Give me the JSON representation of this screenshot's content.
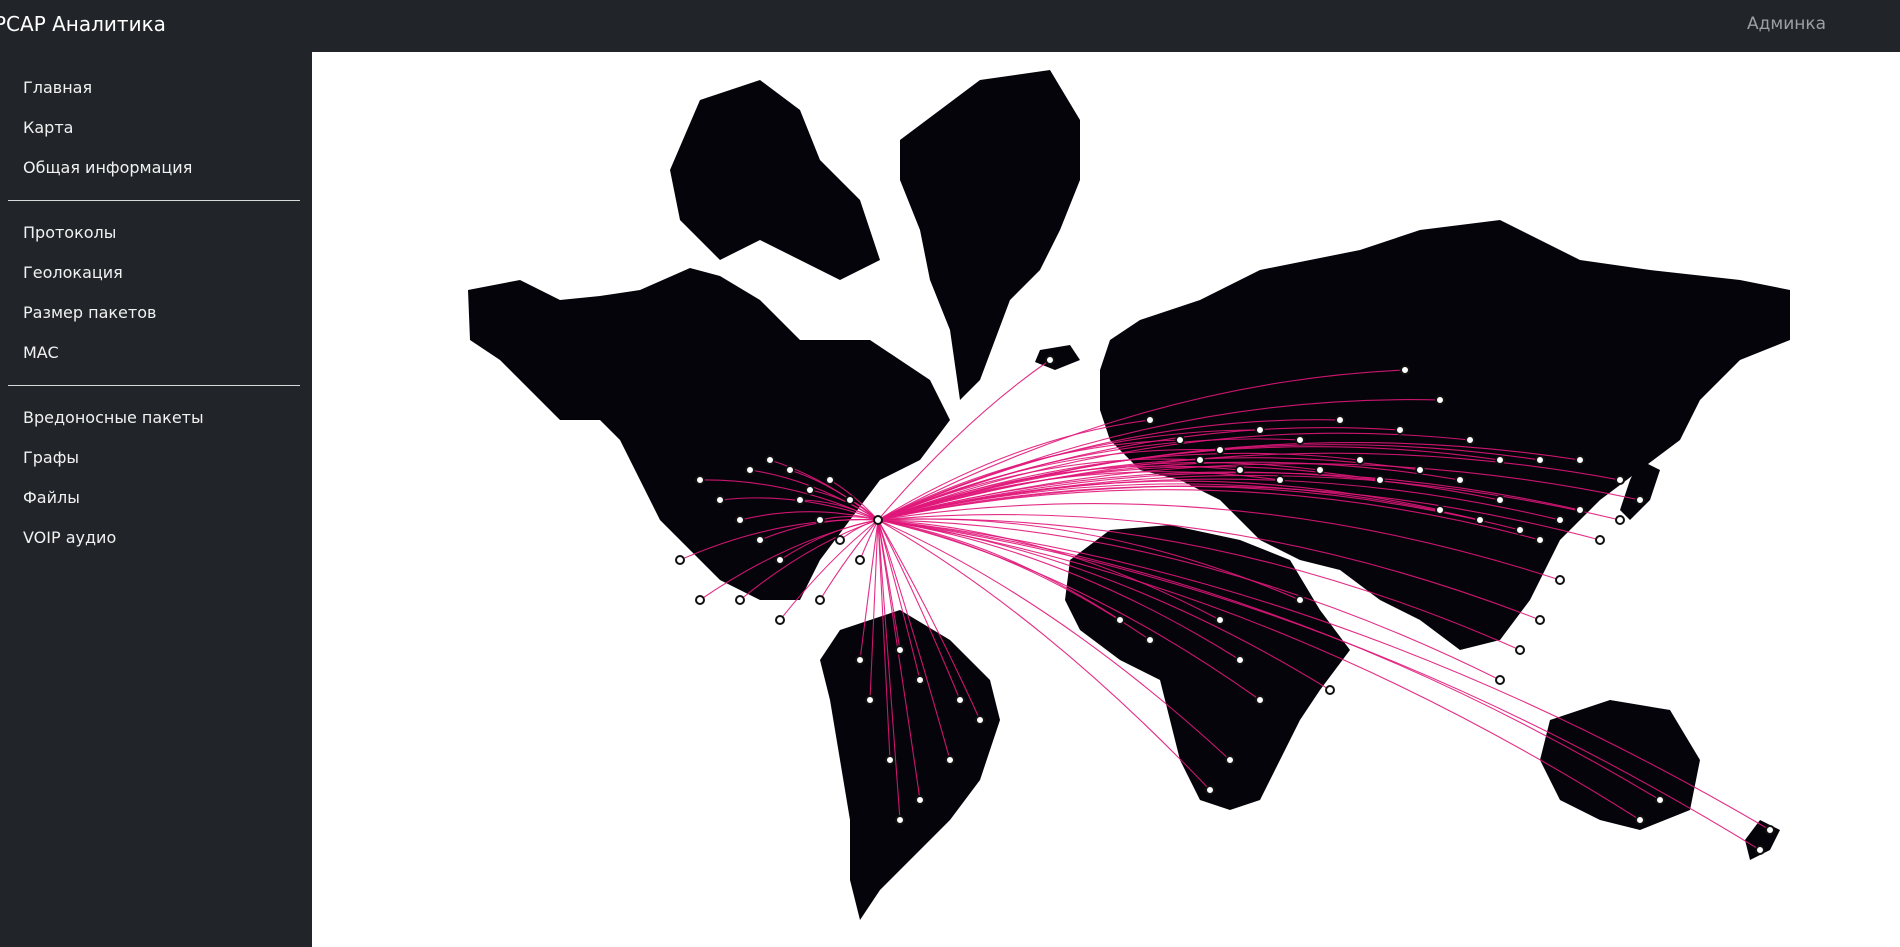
{
  "header": {
    "brand": "PCAP Аналитика",
    "admin_link": "Админка"
  },
  "sidebar": {
    "groups": [
      {
        "items": [
          {
            "label": "Главная"
          },
          {
            "label": "Карта"
          },
          {
            "label": "Общая информация"
          }
        ]
      },
      {
        "items": [
          {
            "label": "Протоколы"
          },
          {
            "label": "Геолокация"
          },
          {
            "label": "Размер пакетов"
          },
          {
            "label": "MAC"
          }
        ]
      },
      {
        "items": [
          {
            "label": "Вредоносные пакеты"
          },
          {
            "label": "Графы"
          },
          {
            "label": "Файлы"
          },
          {
            "label": "VOIP аудио"
          }
        ]
      }
    ]
  },
  "map": {
    "land_color": "#05040a",
    "border_color": "#ffffff",
    "connection_color": "#e0177a",
    "marker_fill": "#ffffff",
    "marker_stroke": "#111111"
  }
}
